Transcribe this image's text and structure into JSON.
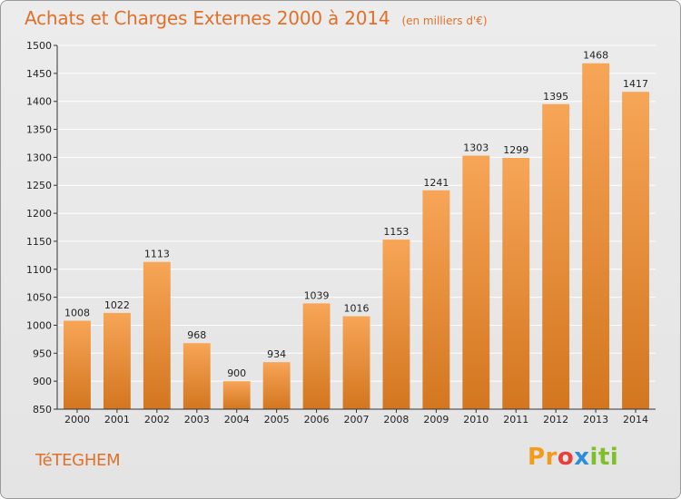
{
  "header": {
    "title": "Achats et Charges Externes 2000 à 2014",
    "subtitle": "(en milliers d'€)"
  },
  "footer": {
    "commune": "TéTEGHEM",
    "logo_text": "Proxiti"
  },
  "colors": {
    "accent": "#e0712a",
    "bar_top": "#f7a557",
    "bar_bottom": "#d3761f",
    "grid": "#ffffff"
  },
  "chart_data": {
    "type": "bar",
    "title": "Achats et Charges Externes 2000 à 2014",
    "subtitle": "(en milliers d'€)",
    "xlabel": "",
    "ylabel": "",
    "categories": [
      "2000",
      "2001",
      "2002",
      "2003",
      "2004",
      "2005",
      "2006",
      "2007",
      "2008",
      "2009",
      "2010",
      "2011",
      "2012",
      "2013",
      "2014"
    ],
    "values": [
      1008,
      1022,
      1113,
      968,
      900,
      934,
      1039,
      1016,
      1153,
      1241,
      1303,
      1299,
      1395,
      1468,
      1417
    ],
    "ylim": [
      850,
      1500
    ],
    "yticks": [
      850,
      900,
      950,
      1000,
      1050,
      1100,
      1150,
      1200,
      1250,
      1300,
      1350,
      1400,
      1450,
      1500
    ],
    "grid": true,
    "data_labels": true
  }
}
